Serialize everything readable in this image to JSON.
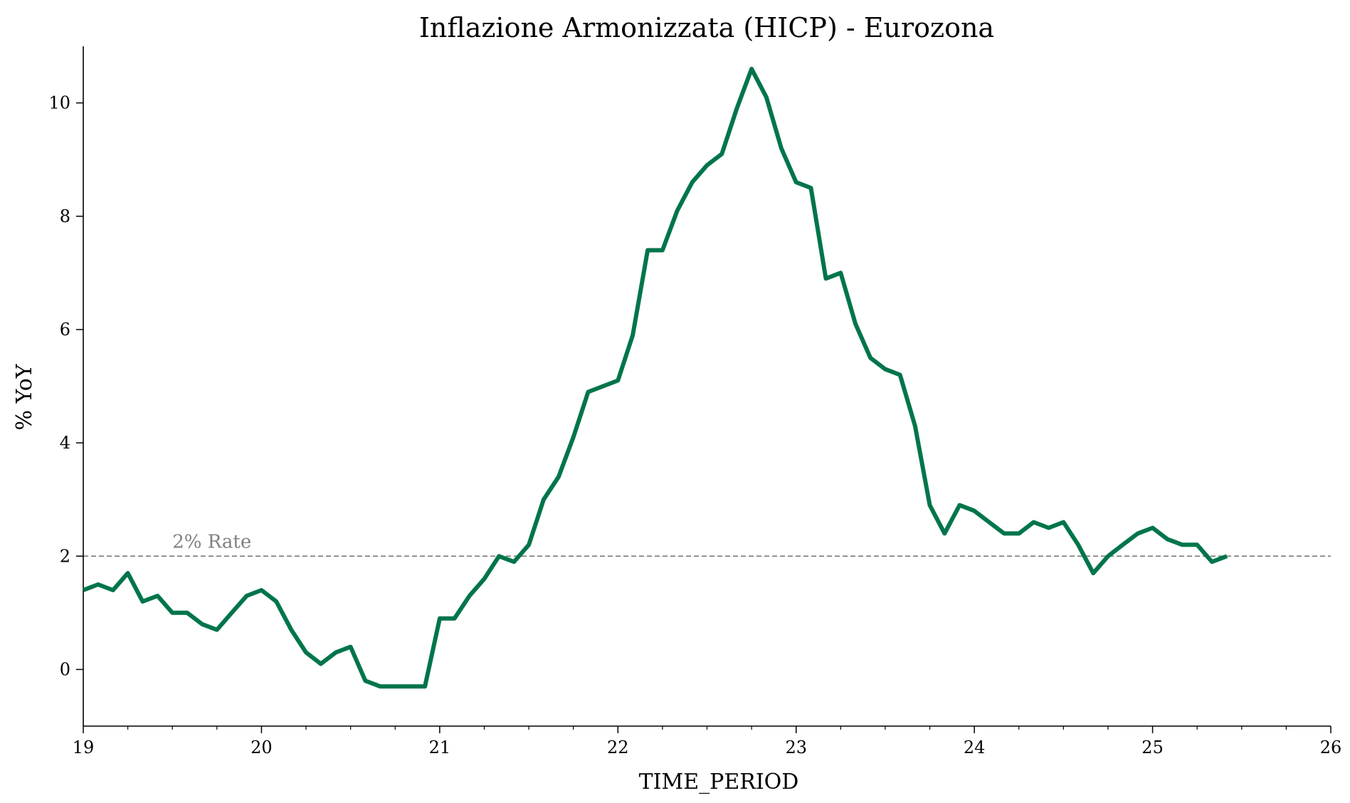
{
  "chart_data": {
    "type": "line",
    "title": "Inflazione Armonizzata (HICP) - Eurozona",
    "xlabel": "TIME_PERIOD",
    "ylabel": "% YoY",
    "xlim": [
      19,
      26
    ],
    "ylim": [
      -1,
      11
    ],
    "xticks": [
      19,
      20,
      21,
      22,
      23,
      24,
      25,
      26
    ],
    "yticks": [
      0,
      2,
      4,
      6,
      8,
      10
    ],
    "x_minor_step": 0.25,
    "grid": false,
    "line_color": "#00754A",
    "reference_line": {
      "y": 2,
      "label": "2% Rate",
      "color": "#808080",
      "style": "dashed"
    },
    "series": [
      {
        "x": [
          19.0,
          19.083,
          19.167,
          19.25,
          19.333,
          19.417,
          19.5,
          19.583,
          19.667,
          19.75,
          19.833,
          19.917,
          20.0,
          20.083,
          20.167,
          20.25,
          20.333,
          20.417,
          20.5,
          20.583,
          20.667,
          20.75,
          20.833,
          20.917,
          21.0,
          21.083,
          21.167,
          21.25,
          21.333,
          21.417,
          21.5,
          21.583,
          21.667,
          21.75,
          21.833,
          21.917,
          22.0,
          22.083,
          22.167,
          22.25,
          22.333,
          22.417,
          22.5,
          22.583,
          22.667,
          22.75,
          22.833,
          22.917,
          23.0,
          23.083,
          23.167,
          23.25,
          23.333,
          23.417,
          23.5,
          23.583,
          23.667,
          23.75,
          23.833,
          23.917,
          24.0,
          24.083,
          24.167,
          24.25,
          24.333,
          24.417,
          24.5,
          24.583,
          24.667,
          24.75,
          24.833,
          24.917,
          25.0,
          25.083,
          25.167,
          25.25,
          25.333,
          25.417
        ],
        "values": [
          1.4,
          1.5,
          1.4,
          1.7,
          1.2,
          1.3,
          1.0,
          1.0,
          0.8,
          0.7,
          1.0,
          1.3,
          1.4,
          1.2,
          0.7,
          0.3,
          0.1,
          0.3,
          0.4,
          -0.2,
          -0.3,
          -0.3,
          -0.3,
          -0.3,
          0.9,
          0.9,
          1.3,
          1.6,
          2.0,
          1.9,
          2.2,
          3.0,
          3.4,
          4.1,
          4.9,
          5.0,
          5.1,
          5.9,
          7.4,
          7.4,
          8.1,
          8.6,
          8.9,
          9.1,
          9.9,
          10.6,
          10.1,
          9.2,
          8.6,
          8.5,
          6.9,
          7.0,
          6.1,
          5.5,
          5.3,
          5.2,
          4.3,
          2.9,
          2.4,
          2.9,
          2.8,
          2.6,
          2.4,
          2.4,
          2.6,
          2.5,
          2.6,
          2.2,
          1.7,
          2.0,
          2.2,
          2.4,
          2.5,
          2.3,
          2.2,
          2.2,
          1.9,
          2.0
        ]
      }
    ]
  }
}
